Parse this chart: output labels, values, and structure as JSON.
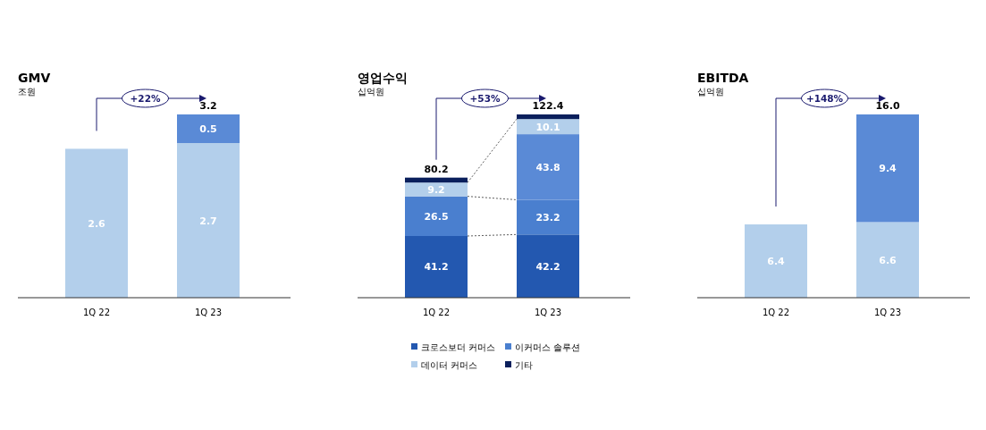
{
  "chart_data": [
    {
      "type": "bar",
      "stacked": true,
      "title": "GMV",
      "subtitle": "조원",
      "categories": [
        "1Q 22",
        "1Q 23"
      ],
      "series": [
        {
          "color": "#b3cfeb",
          "values": [
            2.6,
            2.7
          ],
          "value_labels": [
            "2.6",
            "2.7"
          ]
        },
        {
          "color": "#5a8ad6",
          "values": [
            null,
            0.5
          ],
          "value_labels": [
            null,
            "0.5"
          ]
        }
      ],
      "totals": [
        null,
        "3.2"
      ],
      "annotations": [
        "+22%"
      ]
    },
    {
      "type": "bar",
      "stacked": true,
      "title": "영업수익",
      "subtitle": "십억원",
      "categories": [
        "1Q 22",
        "1Q 23"
      ],
      "series": [
        {
          "name": "크로스보더 커머스",
          "color": "#2358b0",
          "values": [
            41.2,
            42.2
          ],
          "value_labels": [
            "41.2",
            "42.2"
          ]
        },
        {
          "name": "이커머스 솔루션",
          "color": "#4a7fcf",
          "values": [
            26.5,
            23.2
          ],
          "value_labels": [
            "26.5",
            "23.2"
          ]
        },
        {
          "color": "#5a8ad6",
          "values": [
            null,
            43.8
          ],
          "value_labels": [
            null,
            "43.8"
          ]
        },
        {
          "name": "데이터 커머스",
          "color": "#b3cfeb",
          "values": [
            9.2,
            10.1
          ],
          "value_labels": [
            "9.2",
            "10.1"
          ]
        },
        {
          "name": "기타",
          "color": "#0a1f5c",
          "values": [
            3.3,
            3.1
          ],
          "value_labels": [
            null,
            null
          ]
        }
      ],
      "totals": [
        "80.2",
        "122.4"
      ],
      "annotations": [
        "+53%"
      ],
      "legend": "bottom"
    },
    {
      "type": "bar",
      "stacked": true,
      "title": "EBITDA",
      "subtitle": "십억원",
      "categories": [
        "1Q 22",
        "1Q 23"
      ],
      "series": [
        {
          "color": "#b3cfeb",
          "values": [
            6.4,
            6.6
          ],
          "value_labels": [
            "6.4",
            "6.6"
          ]
        },
        {
          "color": "#5a8ad6",
          "values": [
            null,
            9.4
          ],
          "value_labels": [
            null,
            "9.4"
          ]
        }
      ],
      "totals": [
        null,
        "16.0"
      ],
      "annotations": [
        "+148%"
      ]
    }
  ]
}
